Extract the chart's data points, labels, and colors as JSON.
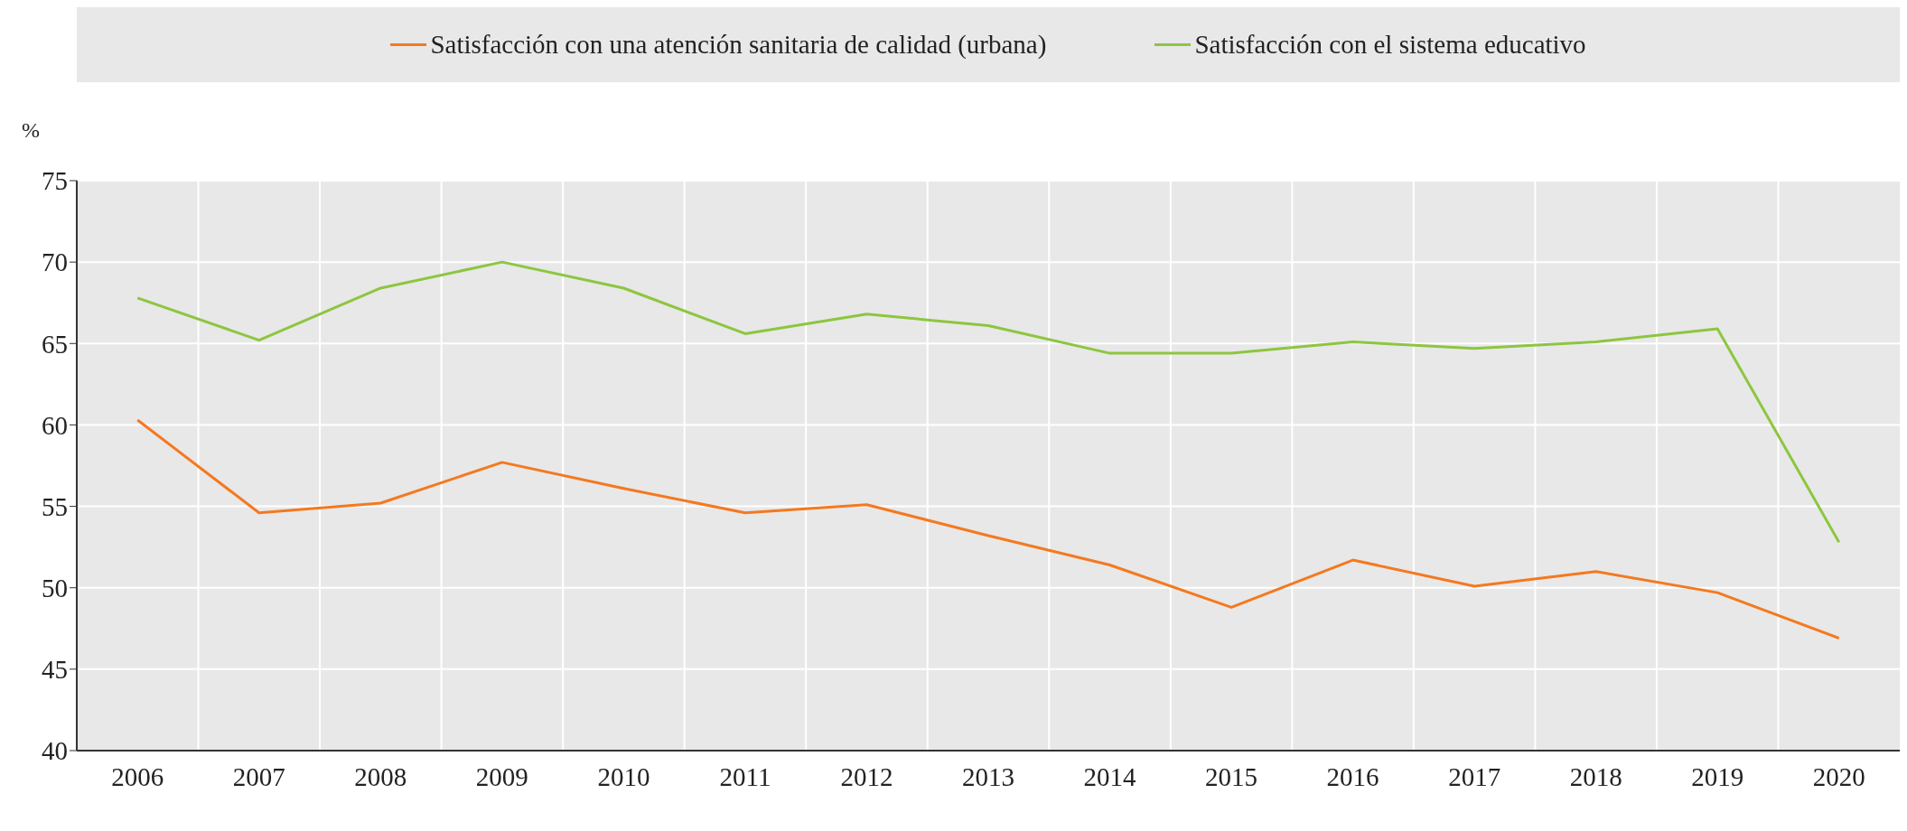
{
  "chart_data": {
    "type": "line",
    "ylabel": "%",
    "categories": [
      "2006",
      "2007",
      "2008",
      "2009",
      "2010",
      "2011",
      "2012",
      "2013",
      "2014",
      "2015",
      "2016",
      "2017",
      "2018",
      "2019",
      "2020"
    ],
    "series": [
      {
        "name": "Satisfacción con una atención sanitaria de calidad (urbana)",
        "color": "#f47920",
        "values": [
          60.3,
          54.6,
          55.2,
          57.7,
          56.1,
          54.6,
          55.1,
          53.2,
          51.4,
          48.8,
          51.7,
          50.1,
          51.0,
          49.7,
          46.9
        ]
      },
      {
        "name": "Satisfacción con el sistema educativo",
        "color": "#8cc63f",
        "values": [
          67.8,
          65.2,
          68.4,
          70.0,
          68.4,
          65.6,
          66.8,
          66.1,
          64.4,
          64.4,
          65.1,
          64.7,
          65.1,
          65.9,
          52.8
        ]
      }
    ],
    "ylim": [
      40,
      75
    ],
    "yticks": [
      40,
      45,
      50,
      55,
      60,
      65,
      70,
      75
    ],
    "grid": true,
    "legend": "top",
    "marker": "none",
    "line_style": "solid"
  }
}
